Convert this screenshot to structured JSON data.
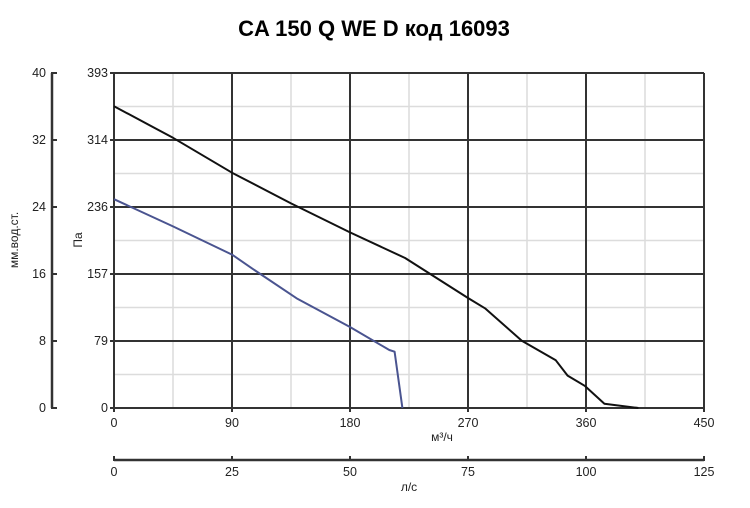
{
  "chart_data": {
    "type": "line",
    "title": "CA 150 Q WE D код 16093",
    "xlabel": "м³/ч",
    "ylabel": "Па",
    "xlim": [
      0,
      450
    ],
    "ylim": [
      0,
      393
    ],
    "x_ticks": [
      "0",
      "90",
      "180",
      "270",
      "360",
      "450"
    ],
    "y_ticks": [
      "0",
      "79",
      "157",
      "236",
      "314",
      "393"
    ],
    "grid": true,
    "secondary_y": {
      "label": "мм.вод.ст.",
      "ylim": [
        0,
        40
      ],
      "ticks": [
        "0",
        "8",
        "16",
        "24",
        "32",
        "40"
      ]
    },
    "secondary_x": {
      "label": "л/с",
      "xlim": [
        0,
        125
      ],
      "ticks": [
        "0",
        "25",
        "50",
        "75",
        "100",
        "125"
      ]
    },
    "series": [
      {
        "color": "#111111",
        "x": [
          0,
          45,
          90,
          135,
          180,
          222,
          270,
          283,
          311,
          337,
          346,
          359,
          374,
          400
        ],
        "y": [
          354,
          317,
          276,
          240,
          206,
          176,
          129,
          117,
          79,
          56,
          38,
          26,
          5,
          0
        ]
      },
      {
        "color": "#4a5490",
        "x": [
          0,
          45,
          90,
          105,
          140,
          180,
          210,
          214,
          220
        ],
        "y": [
          245,
          213,
          180,
          164,
          128,
          95,
          68,
          66,
          0
        ]
      }
    ]
  }
}
